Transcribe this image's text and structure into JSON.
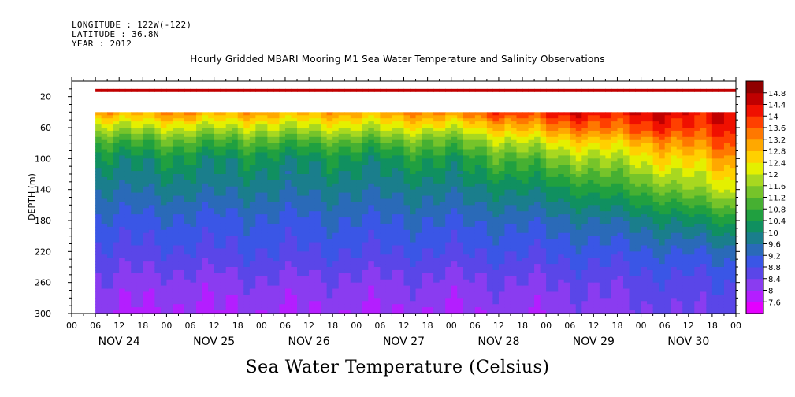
{
  "header": {
    "longitude": "LONGITUDE : 122W(-122)",
    "latitude": "LATITUDE : 36.8N",
    "year": "YEAR : 2012"
  },
  "chart_data": {
    "type": "heatmap",
    "title": "Hourly Gridded MBARI Mooring M1 Sea Water Temperature and Salinity Observations",
    "colorbar_title": "Sea Water Temperature (Celsius)",
    "ylabel": "DEPTH (m)",
    "xlabel": "",
    "ylim": [
      300,
      0
    ],
    "y_ticks": [
      20,
      60,
      100,
      140,
      180,
      220,
      260,
      300
    ],
    "x_range_hours": [
      0,
      168
    ],
    "x_hour_labels": [
      "00",
      "06",
      "12",
      "18",
      "00",
      "06",
      "12",
      "18",
      "00",
      "06",
      "12",
      "18",
      "00",
      "06",
      "12",
      "18",
      "00",
      "06",
      "12",
      "18",
      "00",
      "06",
      "12",
      "18",
      "00",
      "06",
      "12",
      "18",
      "00"
    ],
    "x_day_labels": [
      "NOV 24",
      "NOV 25",
      "NOV 26",
      "NOV 27",
      "NOV 28",
      "NOV 29",
      "NOV 30"
    ],
    "data_start_hour": 6,
    "colorbar": {
      "levels": [
        7.6,
        8,
        8.4,
        8.8,
        9.2,
        9.6,
        10,
        10.4,
        10.8,
        11.2,
        11.6,
        12,
        12.4,
        12.8,
        13.2,
        13.6,
        14,
        14.4,
        14.8
      ],
      "labels": [
        "7.6",
        "8",
        "8.4",
        "8.8",
        "9.2",
        "9.6",
        "10",
        "10.4",
        "10.8",
        "11.2",
        "11.6",
        "12",
        "12.4",
        "12.8",
        "13.2",
        "13.6",
        "14",
        "14.4",
        "14.8"
      ],
      "colors": [
        "#e400ff",
        "#b41eff",
        "#8a3cf0",
        "#5a46e8",
        "#3a56e6",
        "#2a6ab8",
        "#1a7e8c",
        "#109060",
        "#20a040",
        "#46b032",
        "#76c42a",
        "#a8d820",
        "#e4f000",
        "#ffd000",
        "#ffa800",
        "#ff7800",
        "#ff4000",
        "#f01000",
        "#c00000",
        "#900000"
      ]
    },
    "surface_layer": {
      "depth_range": [
        10,
        14
      ],
      "temperature": 14.6
    },
    "gap_depth_range": [
      14,
      40
    ],
    "profiles": [
      {
        "day": 0.25,
        "temps": {
          "40": 13.0,
          "60": 11.8,
          "80": 10.8,
          "100": 10.2,
          "140": 9.6,
          "180": 9.1,
          "220": 8.7,
          "260": 8.3,
          "300": 8.0
        }
      },
      {
        "day": 1.0,
        "temps": {
          "40": 13.2,
          "60": 12.0,
          "80": 11.0,
          "100": 10.3,
          "140": 9.7,
          "180": 9.1,
          "220": 8.7,
          "260": 8.2,
          "300": 7.9
        }
      },
      {
        "day": 2.0,
        "temps": {
          "40": 13.0,
          "60": 11.9,
          "80": 10.9,
          "100": 10.2,
          "140": 9.7,
          "180": 9.1,
          "220": 8.8,
          "260": 8.3,
          "300": 8.0
        }
      },
      {
        "day": 3.0,
        "temps": {
          "40": 13.0,
          "60": 12.0,
          "80": 11.0,
          "100": 10.3,
          "140": 9.7,
          "180": 9.2,
          "220": 8.8,
          "260": 8.3,
          "300": 8.0
        }
      },
      {
        "day": 4.0,
        "temps": {
          "40": 13.4,
          "60": 12.2,
          "80": 11.2,
          "100": 10.5,
          "140": 9.8,
          "180": 9.2,
          "220": 8.8,
          "260": 8.3,
          "300": 8.0
        }
      },
      {
        "day": 5.0,
        "temps": {
          "40": 14.2,
          "60": 13.2,
          "80": 12.2,
          "100": 11.4,
          "140": 10.2,
          "180": 9.4,
          "220": 8.9,
          "260": 8.4,
          "300": 8.1
        }
      },
      {
        "day": 6.0,
        "temps": {
          "40": 14.4,
          "60": 13.8,
          "80": 12.8,
          "100": 12.2,
          "140": 11.0,
          "180": 9.8,
          "220": 9.1,
          "260": 8.6,
          "300": 8.3
        }
      },
      {
        "day": 7.0,
        "temps": {
          "40": 14.4,
          "60": 14.2,
          "80": 13.8,
          "100": 13.2,
          "140": 12.2,
          "180": 10.6,
          "220": 9.4,
          "260": 8.8,
          "300": 8.6
        }
      }
    ]
  }
}
